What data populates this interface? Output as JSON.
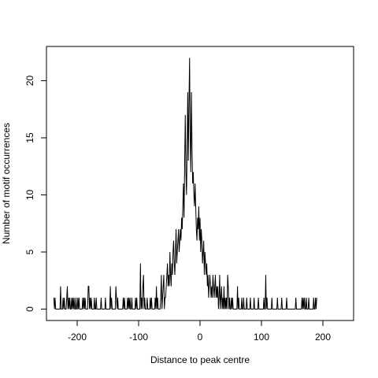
{
  "chart_data": {
    "type": "line",
    "title": "",
    "xlabel": "Distance to peak centre",
    "ylabel": "Number of motif occurrences",
    "xlim": [
      -250,
      250
    ],
    "ylim": [
      -1,
      23
    ],
    "grid": false,
    "legend": "none",
    "line_color": "#000000",
    "x_ticks": [
      -200,
      -100,
      0,
      100,
      200
    ],
    "x_tick_labels": [
      "-200",
      "-100",
      "0",
      "100",
      "200"
    ],
    "y_ticks": [
      0,
      5,
      10,
      15,
      20
    ],
    "y_tick_labels": [
      "0",
      "5",
      "10",
      "15",
      "20"
    ],
    "x_start": -238,
    "x_step": 1,
    "series": [
      {
        "values": [
          1,
          0,
          1,
          0,
          0,
          0,
          0,
          0,
          0,
          0,
          0,
          2,
          0,
          0,
          0,
          1,
          0,
          1,
          0,
          0,
          0,
          1,
          2,
          0,
          1,
          0,
          1,
          0,
          0,
          1,
          0,
          1,
          0,
          1,
          0,
          0,
          1,
          0,
          0,
          1,
          0,
          1,
          0,
          0,
          0,
          0,
          0,
          1,
          0,
          1,
          0,
          1,
          0,
          0,
          0,
          0,
          2,
          2,
          0,
          1,
          0,
          1,
          0,
          0,
          0,
          0,
          1,
          0,
          0,
          1,
          0,
          0,
          0,
          0,
          0,
          0,
          0,
          1,
          0,
          0,
          0,
          0,
          0,
          0,
          1,
          0,
          0,
          0,
          0,
          0,
          0,
          0,
          2,
          0,
          1,
          0,
          0,
          0,
          0,
          0,
          0,
          2,
          1,
          0,
          1,
          0,
          0,
          0,
          0,
          0,
          0,
          0,
          0,
          1,
          0,
          1,
          0,
          0,
          0,
          0,
          1,
          0,
          1,
          0,
          1,
          0,
          0,
          1,
          0,
          0,
          0,
          0,
          0,
          1,
          0,
          1,
          0,
          0,
          0,
          0,
          0,
          4,
          0,
          1,
          0,
          2,
          3,
          0,
          1,
          0,
          0,
          0,
          1,
          0,
          0,
          0,
          0,
          1,
          0,
          1,
          0,
          0,
          0,
          0,
          0,
          1,
          0,
          2,
          0,
          1,
          0,
          0,
          0,
          0,
          1,
          3,
          0,
          1,
          2,
          3,
          0,
          1,
          1,
          2,
          3,
          4,
          2,
          3,
          2,
          5,
          3,
          2,
          4,
          3,
          5,
          6,
          4,
          3,
          5,
          7,
          4,
          5,
          6,
          7,
          5,
          6,
          7,
          6,
          8,
          7,
          9,
          11,
          8,
          13,
          17,
          12,
          10,
          14,
          19,
          13,
          18,
          22,
          15,
          12,
          19,
          14,
          11,
          12,
          10,
          9,
          11,
          9,
          7,
          6,
          8,
          7,
          9,
          6,
          8,
          5,
          7,
          6,
          4,
          5,
          6,
          3,
          5,
          4,
          3,
          4,
          2,
          3,
          1,
          2,
          3,
          2,
          1,
          2,
          1,
          3,
          2,
          1,
          2,
          3,
          1,
          2,
          1,
          2,
          0,
          1,
          3,
          0,
          1,
          2,
          0,
          1,
          0,
          2,
          0,
          1,
          0,
          1,
          0,
          3,
          2,
          0,
          1,
          0,
          0,
          1,
          0,
          1,
          0,
          0,
          0,
          0,
          0,
          0,
          0,
          2,
          0,
          1,
          0,
          0,
          0,
          0,
          1,
          0,
          0,
          1,
          0,
          0,
          0,
          0,
          1,
          0,
          0,
          0,
          0,
          0,
          1,
          0,
          0,
          0,
          0,
          0,
          1,
          0,
          0,
          0,
          0,
          0,
          0,
          1,
          0,
          0,
          0,
          0,
          0,
          0,
          0,
          0,
          1,
          0,
          0,
          3,
          0,
          1,
          0,
          0,
          0,
          0,
          0,
          0,
          0,
          1,
          0,
          0,
          0,
          0,
          0,
          0,
          0,
          0,
          1,
          0,
          0,
          0,
          0,
          0,
          0,
          1,
          0,
          0,
          0,
          0,
          0,
          0,
          0,
          1,
          0,
          0,
          0,
          0,
          0,
          0,
          0,
          0,
          0,
          0,
          0,
          0,
          0,
          0,
          1,
          0,
          0,
          0,
          0,
          0,
          0,
          0,
          0,
          0,
          1,
          0,
          1,
          0,
          1,
          0,
          0,
          1,
          0,
          0,
          0,
          1,
          0,
          0,
          0,
          0,
          0,
          0,
          0,
          1,
          0,
          0,
          1,
          0,
          1
        ]
      }
    ]
  }
}
